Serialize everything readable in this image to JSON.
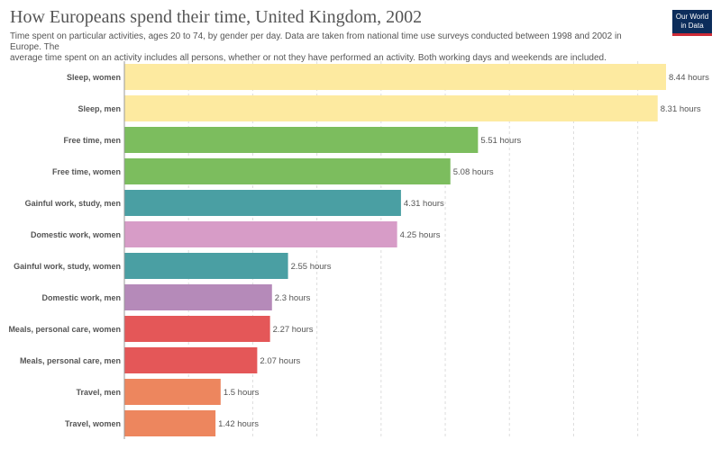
{
  "header": {
    "title": "How Europeans spend their time, United Kingdom, 2002",
    "subtitle_line1": "Time spent on particular activities, ages 20 to 74, by gender per day. Data are taken from national time use surveys conducted between 1998 and 2002 in Europe. The",
    "subtitle_line2": "average time spent on an activity includes all persons, whether or not they have performed an activity. Both working days and weekends are included.",
    "logo_line1": "Our World",
    "logo_line2": "in Data"
  },
  "colors": {
    "sleep": "#fdeaa0",
    "free_time": "#7cbd5e",
    "gainful_work": "#4a9fa3",
    "domestic_work_women": "#d79cc7",
    "domestic_work_men": "#b58ab9",
    "meals": "#e45758",
    "travel": "#ed865e",
    "logo_bg": "#0c2d5b",
    "logo_accent": "#ce2b37"
  },
  "chart_data": {
    "type": "bar",
    "orientation": "horizontal",
    "unit": "hours",
    "xlim": [
      0,
      8.44
    ],
    "grid": true,
    "categories": [
      "Sleep, women",
      "Sleep, men",
      "Free time, men",
      "Free time, women",
      "Gainful work, study, men",
      "Domestic work, women",
      "Gainful work, study, women",
      "Domestic work, men",
      "Meals, personal care, women",
      "Meals, personal care, men",
      "Travel, men",
      "Travel, women"
    ],
    "values": [
      8.44,
      8.31,
      5.51,
      5.08,
      4.31,
      4.25,
      2.55,
      2.3,
      2.27,
      2.07,
      1.5,
      1.42
    ],
    "value_labels": [
      "8.44 hours",
      "8.31 hours",
      "5.51 hours",
      "5.08 hours",
      "4.31 hours",
      "4.25 hours",
      "2.55 hours",
      "2.3 hours",
      "2.27 hours",
      "2.07 hours",
      "1.5 hours",
      "1.42 hours"
    ],
    "bar_colors": [
      "#fdeaa0",
      "#fdeaa0",
      "#7cbd5e",
      "#7cbd5e",
      "#4a9fa3",
      "#d79cc7",
      "#4a9fa3",
      "#b58ab9",
      "#e45758",
      "#e45758",
      "#ed865e",
      "#ed865e"
    ]
  }
}
